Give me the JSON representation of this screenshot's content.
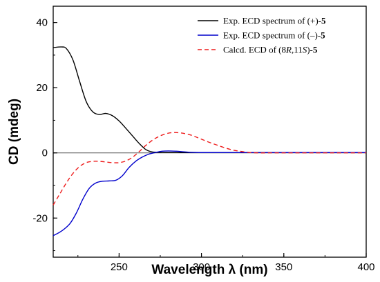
{
  "chart_data": {
    "type": "line",
    "xlabel": "Wavelength λ (nm)",
    "ylabel": "CD (mdeg)",
    "xlim": [
      210,
      400
    ],
    "ylim": [
      -32,
      45
    ],
    "xticks": [
      250,
      300,
      350,
      400
    ],
    "yticks": [
      -20,
      0,
      20,
      40
    ],
    "x_minor_step": 25,
    "y_minor_step": 10,
    "zero_line": true,
    "grid": false,
    "legend_position": "top-right",
    "series": [
      {
        "name": "Exp. ECD spectrum of (+)-5",
        "legend": {
          "prefix": "Exp. ECD spectrum of (+)-",
          "bold": "5"
        },
        "color": "#000000",
        "dash": "solid",
        "x": [
          210,
          215,
          218,
          222,
          226,
          230,
          234,
          238,
          242,
          246,
          250,
          254,
          258,
          262,
          266,
          270,
          275,
          280,
          290,
          300,
          350,
          400
        ],
        "y": [
          32.3,
          32.5,
          32.0,
          28.5,
          22.0,
          15.8,
          12.6,
          11.8,
          12.1,
          11.4,
          9.8,
          7.6,
          5.3,
          3.0,
          1.1,
          0.3,
          0.15,
          0.1,
          0.1,
          0.1,
          0.1,
          0.1
        ]
      },
      {
        "name": "Exp. ECD spectrum of (−)-5",
        "legend": {
          "prefix": "Exp. ECD spectrum of (–)-",
          "bold": "5"
        },
        "color": "#0000cc",
        "dash": "solid",
        "x": [
          210,
          215,
          220,
          224,
          228,
          232,
          236,
          240,
          244,
          248,
          252,
          256,
          260,
          264,
          268,
          272,
          276,
          280,
          285,
          290,
          300,
          350,
          400
        ],
        "y": [
          -25.4,
          -24.0,
          -21.8,
          -18.5,
          -14.2,
          -10.8,
          -9.2,
          -8.7,
          -8.6,
          -8.4,
          -7.0,
          -4.5,
          -2.6,
          -1.3,
          -0.4,
          0.1,
          0.5,
          0.6,
          0.5,
          0.3,
          0.1,
          0.1,
          0.1
        ]
      },
      {
        "name": "Calcd. ECD of (8R,11S)-5",
        "legend": {
          "prefix": "Calcd. ECD of (8",
          "italic1": "R",
          "mid": ",11",
          "italic2": "S",
          "suffix": ")-",
          "bold": "5"
        },
        "color": "#ee1c1c",
        "dash": "dashed",
        "x": [
          210,
          214,
          218,
          222,
          226,
          230,
          234,
          238,
          242,
          246,
          250,
          254,
          258,
          262,
          266,
          270,
          274,
          278,
          282,
          286,
          290,
          294,
          298,
          302,
          306,
          310,
          314,
          318,
          322,
          326,
          330,
          335,
          340,
          350,
          400
        ],
        "y": [
          -16.0,
          -12.6,
          -9.2,
          -6.3,
          -4.2,
          -3.0,
          -2.6,
          -2.6,
          -2.8,
          -3.0,
          -3.0,
          -2.5,
          -1.4,
          0.3,
          2.2,
          3.8,
          5.0,
          5.8,
          6.2,
          6.2,
          5.9,
          5.4,
          4.6,
          3.8,
          3.0,
          2.3,
          1.6,
          1.0,
          0.6,
          0.3,
          0.1,
          0.0,
          0.0,
          0.0,
          0.0
        ]
      }
    ]
  }
}
